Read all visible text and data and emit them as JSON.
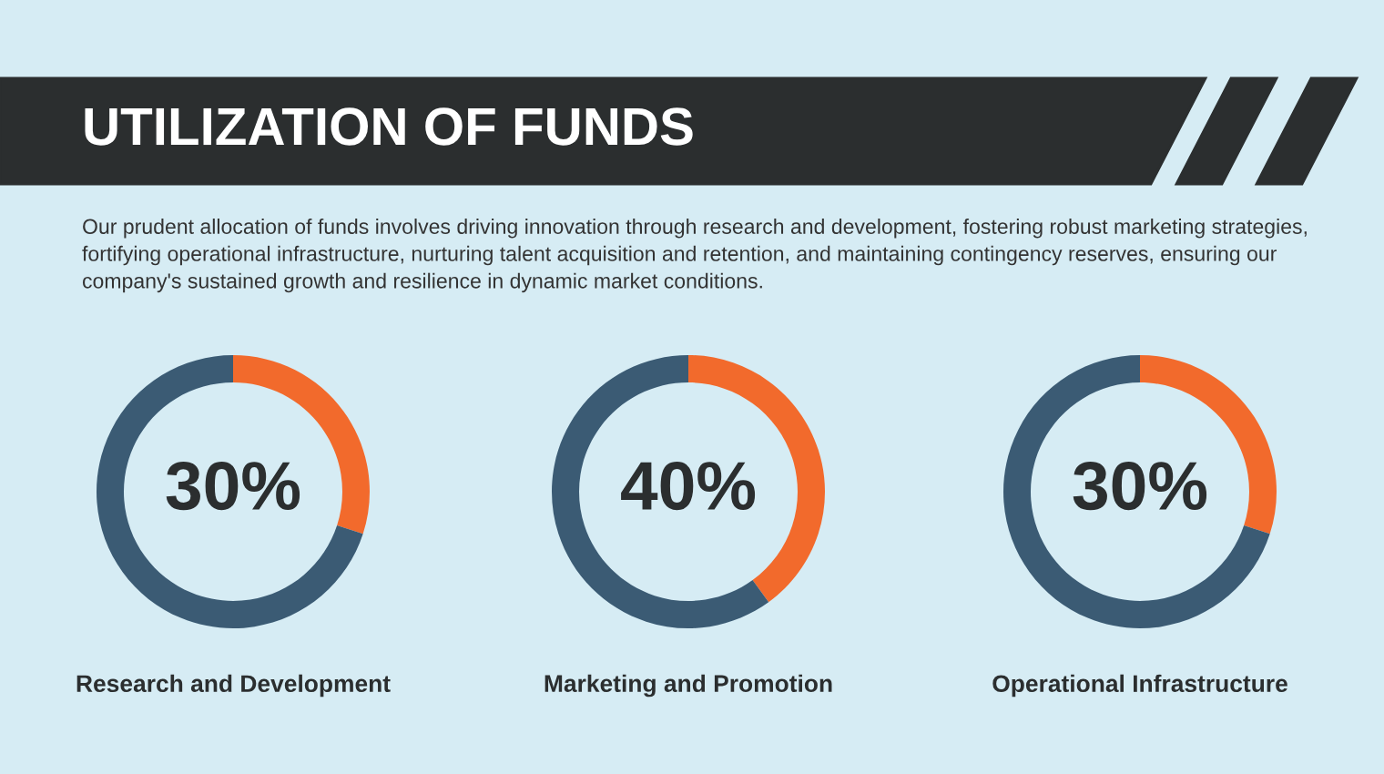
{
  "chart_data": [
    {
      "type": "other",
      "title": "UTILIZATION OF FUNDS",
      "subtitle": "Our prudent allocation of funds involves driving innovation through research and development, fostering robust marketing strategies, fortifying operational infrastructure, nurturing talent acquisition and retention, and maintaining contingency reserves, ensuring our company's sustained growth and resilience in dynamic market conditions."
    },
    {
      "type": "donut",
      "title": "Research and Development",
      "categories": [
        null,
        null
      ],
      "values": [
        30,
        70
      ],
      "colors": [
        "#f26a2c",
        "#3b5b74"
      ],
      "value_labels": [
        "30%",
        null
      ]
    },
    {
      "type": "donut",
      "title": "Marketing and Promotion",
      "categories": [
        null,
        null
      ],
      "values": [
        40,
        60
      ],
      "colors": [
        "#f26a2c",
        "#3b5b74"
      ],
      "value_labels": [
        "40%",
        null
      ]
    },
    {
      "type": "donut",
      "title": "Operational Infrastructure",
      "categories": [
        null,
        null
      ],
      "values": [
        30,
        70
      ],
      "colors": [
        "#f26a2c",
        "#3b5b74"
      ],
      "value_labels": [
        "30%",
        null
      ]
    }
  ]
}
